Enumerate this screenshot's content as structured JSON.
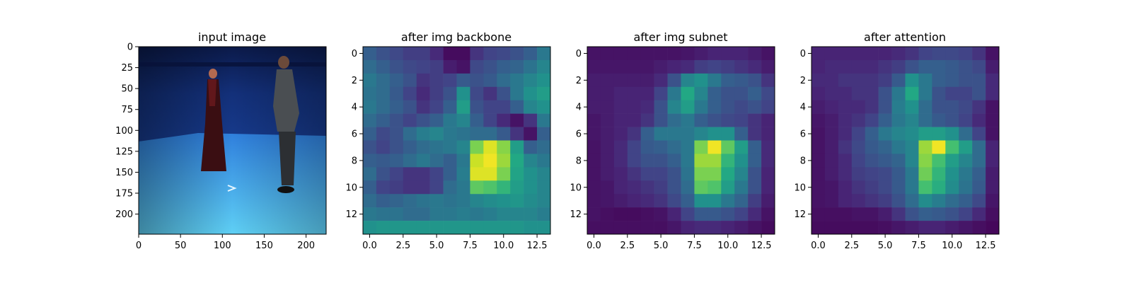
{
  "chart_data": [
    {
      "type": "image",
      "title": "input image",
      "content": "photo",
      "image_size": [
        224,
        224
      ],
      "xticks": [
        0,
        50,
        100,
        150,
        200
      ],
      "yticks": [
        0,
        25,
        50,
        75,
        100,
        125,
        150,
        175,
        200
      ],
      "colors": {
        "wall_top": "#0b1a4a",
        "wall": "#163a8c",
        "floor_far": "#2f7fdd",
        "floor_near": "#5fd0f5"
      }
    },
    {
      "type": "heatmap",
      "title": "after img backbone",
      "colormap": "viridis",
      "xlim": [
        -0.5,
        13.5
      ],
      "ylim": [
        13.5,
        -0.5
      ],
      "xticks": [
        0.0,
        2.5,
        5.0,
        7.5,
        10.0,
        12.5
      ],
      "yticks": [
        0,
        2,
        4,
        6,
        8,
        10,
        12
      ],
      "values": [
        [
          0.3,
          0.25,
          0.22,
          0.18,
          0.18,
          0.12,
          0.03,
          0.03,
          0.15,
          0.2,
          0.22,
          0.25,
          0.3,
          0.4
        ],
        [
          0.35,
          0.3,
          0.25,
          0.22,
          0.2,
          0.18,
          0.08,
          0.05,
          0.22,
          0.25,
          0.3,
          0.32,
          0.38,
          0.45
        ],
        [
          0.4,
          0.35,
          0.3,
          0.25,
          0.15,
          0.18,
          0.2,
          0.28,
          0.25,
          0.28,
          0.35,
          0.4,
          0.45,
          0.5
        ],
        [
          0.38,
          0.35,
          0.28,
          0.2,
          0.12,
          0.18,
          0.25,
          0.5,
          0.22,
          0.15,
          0.25,
          0.4,
          0.5,
          0.55
        ],
        [
          0.4,
          0.35,
          0.3,
          0.25,
          0.15,
          0.2,
          0.3,
          0.55,
          0.25,
          0.2,
          0.2,
          0.3,
          0.45,
          0.5
        ],
        [
          0.35,
          0.3,
          0.25,
          0.2,
          0.25,
          0.3,
          0.4,
          0.45,
          0.3,
          0.2,
          0.12,
          0.05,
          0.15,
          0.4
        ],
        [
          0.3,
          0.22,
          0.25,
          0.35,
          0.42,
          0.45,
          0.4,
          0.38,
          0.35,
          0.35,
          0.28,
          0.15,
          0.05,
          0.3
        ],
        [
          0.25,
          0.2,
          0.25,
          0.3,
          0.35,
          0.38,
          0.4,
          0.45,
          0.8,
          0.95,
          0.82,
          0.55,
          0.3,
          0.35
        ],
        [
          0.3,
          0.28,
          0.3,
          0.35,
          0.4,
          0.35,
          0.3,
          0.4,
          0.92,
          0.98,
          0.85,
          0.6,
          0.45,
          0.4
        ],
        [
          0.35,
          0.25,
          0.2,
          0.15,
          0.15,
          0.2,
          0.3,
          0.42,
          0.95,
          0.95,
          0.8,
          0.58,
          0.5,
          0.45
        ],
        [
          0.3,
          0.2,
          0.18,
          0.15,
          0.15,
          0.2,
          0.35,
          0.4,
          0.75,
          0.72,
          0.65,
          0.55,
          0.5,
          0.45
        ],
        [
          0.35,
          0.3,
          0.32,
          0.35,
          0.38,
          0.4,
          0.38,
          0.4,
          0.45,
          0.48,
          0.5,
          0.52,
          0.48,
          0.45
        ],
        [
          0.4,
          0.38,
          0.38,
          0.35,
          0.35,
          0.4,
          0.4,
          0.42,
          0.4,
          0.42,
          0.45,
          0.45,
          0.45,
          0.42
        ],
        [
          0.5,
          0.52,
          0.52,
          0.52,
          0.52,
          0.52,
          0.52,
          0.52,
          0.52,
          0.52,
          0.52,
          0.52,
          0.5,
          0.5
        ]
      ]
    },
    {
      "type": "heatmap",
      "title": "after img subnet",
      "colormap": "viridis",
      "xlim": [
        -0.5,
        13.5
      ],
      "ylim": [
        13.5,
        -0.5
      ],
      "xticks": [
        0.0,
        2.5,
        5.0,
        7.5,
        10.0,
        12.5
      ],
      "yticks": [
        0,
        2,
        4,
        6,
        8,
        10,
        12
      ],
      "values": [
        [
          0.05,
          0.05,
          0.05,
          0.05,
          0.05,
          0.05,
          0.05,
          0.06,
          0.08,
          0.1,
          0.1,
          0.1,
          0.08,
          0.05
        ],
        [
          0.06,
          0.06,
          0.06,
          0.06,
          0.06,
          0.08,
          0.1,
          0.12,
          0.18,
          0.2,
          0.18,
          0.15,
          0.12,
          0.08
        ],
        [
          0.08,
          0.08,
          0.08,
          0.08,
          0.08,
          0.12,
          0.25,
          0.45,
          0.5,
          0.4,
          0.3,
          0.28,
          0.25,
          0.15
        ],
        [
          0.08,
          0.08,
          0.1,
          0.1,
          0.1,
          0.2,
          0.4,
          0.6,
          0.45,
          0.3,
          0.25,
          0.25,
          0.3,
          0.22
        ],
        [
          0.08,
          0.08,
          0.1,
          0.1,
          0.12,
          0.25,
          0.45,
          0.55,
          0.4,
          0.3,
          0.25,
          0.22,
          0.25,
          0.2
        ],
        [
          0.06,
          0.08,
          0.1,
          0.1,
          0.15,
          0.25,
          0.35,
          0.4,
          0.3,
          0.25,
          0.22,
          0.2,
          0.15,
          0.1
        ],
        [
          0.06,
          0.08,
          0.1,
          0.15,
          0.3,
          0.4,
          0.4,
          0.4,
          0.45,
          0.5,
          0.5,
          0.3,
          0.15,
          0.1
        ],
        [
          0.05,
          0.08,
          0.12,
          0.2,
          0.28,
          0.3,
          0.35,
          0.4,
          0.8,
          0.98,
          0.75,
          0.55,
          0.3,
          0.12
        ],
        [
          0.05,
          0.08,
          0.12,
          0.2,
          0.25,
          0.25,
          0.3,
          0.4,
          0.85,
          0.85,
          0.65,
          0.5,
          0.3,
          0.12
        ],
        [
          0.05,
          0.08,
          0.1,
          0.15,
          0.2,
          0.2,
          0.25,
          0.38,
          0.8,
          0.8,
          0.6,
          0.45,
          0.25,
          0.1
        ],
        [
          0.05,
          0.06,
          0.1,
          0.12,
          0.15,
          0.18,
          0.25,
          0.35,
          0.75,
          0.72,
          0.55,
          0.4,
          0.25,
          0.1
        ],
        [
          0.05,
          0.06,
          0.08,
          0.1,
          0.12,
          0.15,
          0.22,
          0.3,
          0.5,
          0.5,
          0.4,
          0.32,
          0.18,
          0.08
        ],
        [
          0.05,
          0.04,
          0.03,
          0.03,
          0.04,
          0.05,
          0.1,
          0.2,
          0.28,
          0.28,
          0.25,
          0.2,
          0.12,
          0.05
        ],
        [
          0.04,
          0.04,
          0.04,
          0.04,
          0.04,
          0.04,
          0.06,
          0.1,
          0.12,
          0.12,
          0.1,
          0.08,
          0.05,
          0.03
        ]
      ]
    },
    {
      "type": "heatmap",
      "title": "after attention",
      "colormap": "viridis",
      "xlim": [
        -0.5,
        13.5
      ],
      "ylim": [
        13.5,
        -0.5
      ],
      "xticks": [
        0.0,
        2.5,
        5.0,
        7.5,
        10.0,
        12.5
      ],
      "yticks": [
        0,
        2,
        4,
        6,
        8,
        10,
        12
      ],
      "values": [
        [
          0.1,
          0.1,
          0.1,
          0.1,
          0.1,
          0.1,
          0.12,
          0.15,
          0.2,
          0.22,
          0.22,
          0.2,
          0.15,
          0.05
        ],
        [
          0.1,
          0.12,
          0.12,
          0.12,
          0.12,
          0.15,
          0.18,
          0.25,
          0.3,
          0.3,
          0.28,
          0.25,
          0.22,
          0.08
        ],
        [
          0.12,
          0.12,
          0.15,
          0.15,
          0.15,
          0.18,
          0.28,
          0.5,
          0.4,
          0.3,
          0.28,
          0.25,
          0.25,
          0.12
        ],
        [
          0.1,
          0.12,
          0.12,
          0.15,
          0.15,
          0.25,
          0.4,
          0.6,
          0.4,
          0.25,
          0.2,
          0.2,
          0.25,
          0.12
        ],
        [
          0.08,
          0.1,
          0.12,
          0.12,
          0.15,
          0.25,
          0.42,
          0.5,
          0.35,
          0.25,
          0.25,
          0.22,
          0.15,
          0.05
        ],
        [
          0.06,
          0.08,
          0.12,
          0.15,
          0.2,
          0.3,
          0.4,
          0.45,
          0.35,
          0.28,
          0.25,
          0.2,
          0.12,
          0.05
        ],
        [
          0.05,
          0.08,
          0.12,
          0.2,
          0.3,
          0.4,
          0.45,
          0.48,
          0.55,
          0.55,
          0.5,
          0.35,
          0.2,
          0.05
        ],
        [
          0.05,
          0.08,
          0.15,
          0.22,
          0.28,
          0.32,
          0.4,
          0.45,
          0.85,
          0.98,
          0.7,
          0.55,
          0.35,
          0.1
        ],
        [
          0.05,
          0.08,
          0.12,
          0.2,
          0.25,
          0.28,
          0.32,
          0.45,
          0.82,
          0.7,
          0.55,
          0.45,
          0.35,
          0.1
        ],
        [
          0.05,
          0.08,
          0.12,
          0.18,
          0.2,
          0.22,
          0.28,
          0.4,
          0.78,
          0.65,
          0.5,
          0.4,
          0.3,
          0.08
        ],
        [
          0.05,
          0.06,
          0.1,
          0.15,
          0.18,
          0.22,
          0.28,
          0.4,
          0.7,
          0.62,
          0.48,
          0.38,
          0.28,
          0.08
        ],
        [
          0.05,
          0.06,
          0.1,
          0.12,
          0.15,
          0.18,
          0.25,
          0.35,
          0.48,
          0.42,
          0.35,
          0.3,
          0.22,
          0.06
        ],
        [
          0.04,
          0.04,
          0.04,
          0.05,
          0.05,
          0.08,
          0.15,
          0.25,
          0.3,
          0.28,
          0.25,
          0.2,
          0.12,
          0.04
        ],
        [
          0.03,
          0.03,
          0.03,
          0.03,
          0.03,
          0.04,
          0.06,
          0.08,
          0.1,
          0.1,
          0.08,
          0.06,
          0.04,
          0.02
        ]
      ]
    }
  ]
}
